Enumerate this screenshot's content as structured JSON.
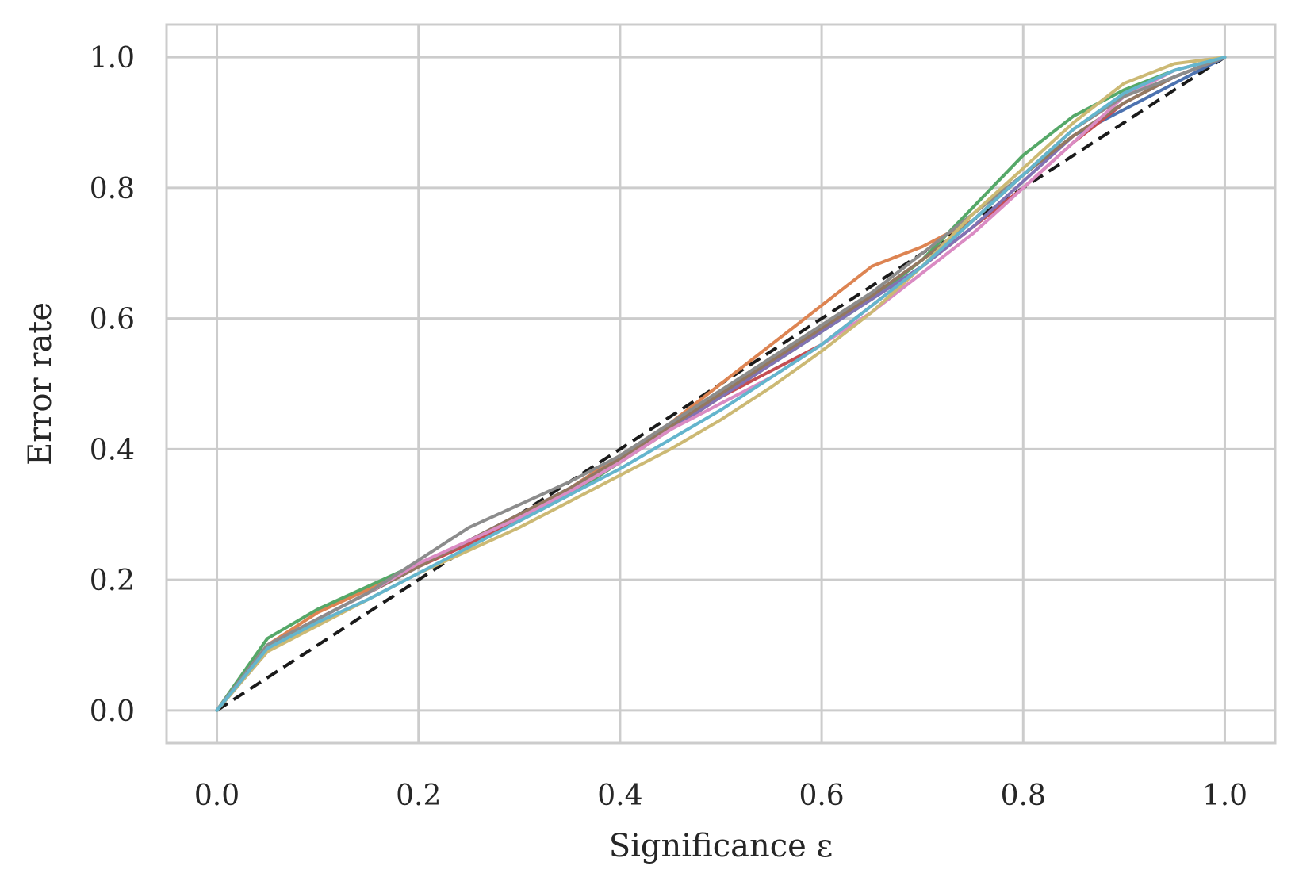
{
  "chart_data": {
    "type": "line",
    "xlabel": "Significance ε",
    "ylabel": "Error rate",
    "xlim": [
      -0.05,
      1.05
    ],
    "ylim": [
      -0.05,
      1.05
    ],
    "xticks": [
      "0.0",
      "0.2",
      "0.4",
      "0.6",
      "0.8",
      "1.0"
    ],
    "yticks": [
      "0.0",
      "0.2",
      "0.4",
      "0.6",
      "0.8",
      "1.0"
    ],
    "grid": true,
    "legend": "none",
    "x": [
      0,
      0.05,
      0.1,
      0.15,
      0.2,
      0.25,
      0.3,
      0.35,
      0.4,
      0.45,
      0.5,
      0.55,
      0.6,
      0.65,
      0.7,
      0.75,
      0.8,
      0.85,
      0.9,
      0.95,
      1.0
    ],
    "reference_line": {
      "x": [
        0,
        1
      ],
      "y": [
        0,
        1
      ],
      "color": "#1a1a1a",
      "dash": true
    },
    "series": [
      {
        "color": "#4C72B0",
        "values": [
          0,
          0.09,
          0.14,
          0.18,
          0.22,
          0.26,
          0.3,
          0.34,
          0.39,
          0.44,
          0.49,
          0.53,
          0.58,
          0.63,
          0.68,
          0.75,
          0.82,
          0.88,
          0.92,
          0.96,
          1.0
        ]
      },
      {
        "color": "#DD8452",
        "values": [
          0,
          0.1,
          0.15,
          0.185,
          0.22,
          0.255,
          0.295,
          0.34,
          0.39,
          0.44,
          0.5,
          0.56,
          0.62,
          0.68,
          0.71,
          0.75,
          0.82,
          0.89,
          0.94,
          0.97,
          1.0
        ]
      },
      {
        "color": "#55A868",
        "values": [
          0,
          0.11,
          0.155,
          0.19,
          0.225,
          0.255,
          0.29,
          0.33,
          0.38,
          0.43,
          0.48,
          0.53,
          0.58,
          0.63,
          0.69,
          0.77,
          0.85,
          0.91,
          0.95,
          0.98,
          1.0
        ]
      },
      {
        "color": "#C44E52",
        "values": [
          0,
          0.1,
          0.14,
          0.18,
          0.22,
          0.255,
          0.29,
          0.335,
          0.38,
          0.43,
          0.48,
          0.52,
          0.56,
          0.62,
          0.68,
          0.74,
          0.8,
          0.87,
          0.93,
          0.97,
          1.0
        ]
      },
      {
        "color": "#8172B3",
        "values": [
          0,
          0.1,
          0.14,
          0.18,
          0.22,
          0.26,
          0.3,
          0.34,
          0.385,
          0.43,
          0.48,
          0.53,
          0.58,
          0.63,
          0.68,
          0.74,
          0.81,
          0.88,
          0.93,
          0.97,
          1.0
        ]
      },
      {
        "color": "#937860",
        "values": [
          0,
          0.1,
          0.14,
          0.18,
          0.22,
          0.26,
          0.3,
          0.34,
          0.385,
          0.435,
          0.485,
          0.535,
          0.585,
          0.635,
          0.69,
          0.75,
          0.82,
          0.88,
          0.93,
          0.97,
          1.0
        ]
      },
      {
        "color": "#DA8BC3",
        "values": [
          0,
          0.1,
          0.14,
          0.18,
          0.225,
          0.26,
          0.295,
          0.335,
          0.38,
          0.43,
          0.47,
          0.51,
          0.56,
          0.61,
          0.67,
          0.73,
          0.8,
          0.87,
          0.94,
          0.98,
          1.0
        ]
      },
      {
        "color": "#8C8C8C",
        "values": [
          0,
          0.1,
          0.14,
          0.18,
          0.23,
          0.28,
          0.315,
          0.35,
          0.39,
          0.44,
          0.49,
          0.54,
          0.59,
          0.64,
          0.7,
          0.76,
          0.82,
          0.89,
          0.94,
          0.97,
          1.0
        ]
      },
      {
        "color": "#CCB974",
        "values": [
          0,
          0.09,
          0.13,
          0.17,
          0.21,
          0.245,
          0.28,
          0.32,
          0.36,
          0.4,
          0.445,
          0.495,
          0.55,
          0.61,
          0.68,
          0.76,
          0.83,
          0.9,
          0.96,
          0.99,
          1.0
        ]
      },
      {
        "color": "#64B5CD",
        "values": [
          0,
          0.095,
          0.135,
          0.17,
          0.21,
          0.25,
          0.29,
          0.33,
          0.37,
          0.415,
          0.46,
          0.51,
          0.56,
          0.62,
          0.68,
          0.75,
          0.82,
          0.89,
          0.945,
          0.98,
          1.0
        ]
      }
    ]
  }
}
